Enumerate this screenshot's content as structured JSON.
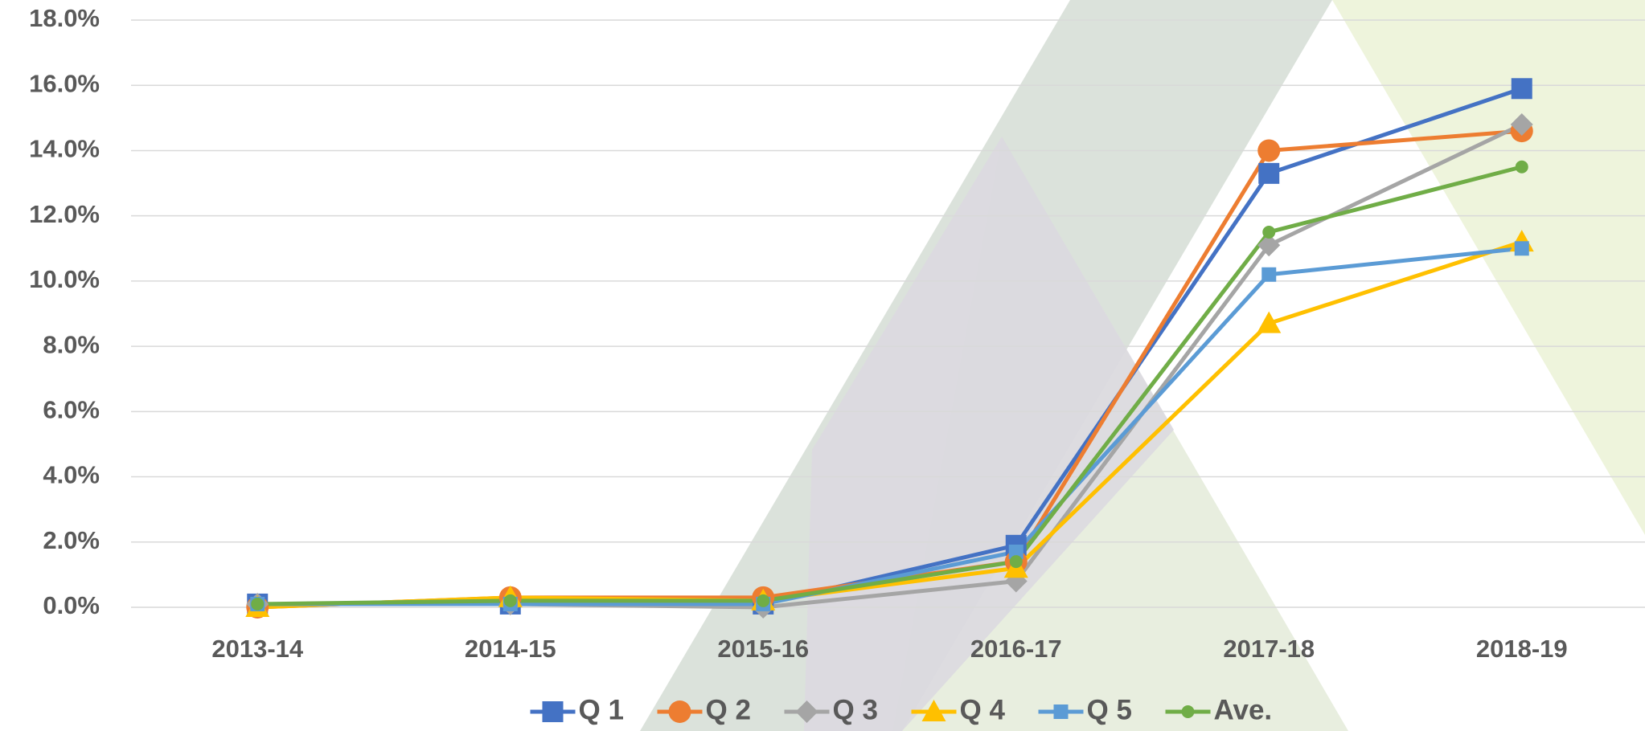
{
  "chart_data": {
    "type": "line",
    "categories": [
      "2013-14",
      "2014-15",
      "2015-16",
      "2016-17",
      "2017-18",
      "2018-19"
    ],
    "series": [
      {
        "name": "Q 1",
        "color": "#4472c4",
        "marker": "square",
        "values": [
          0.1,
          0.1,
          0.1,
          1.9,
          13.3,
          15.9
        ]
      },
      {
        "name": "Q 2",
        "color": "#ed7d31",
        "marker": "circle",
        "values": [
          0.0,
          0.3,
          0.3,
          1.4,
          14.0,
          14.6
        ]
      },
      {
        "name": "Q 3",
        "color": "#a5a5a5",
        "marker": "diamond",
        "values": [
          0.1,
          0.1,
          0.0,
          0.8,
          11.1,
          14.8
        ]
      },
      {
        "name": "Q 4",
        "color": "#ffc000",
        "marker": "triangle",
        "values": [
          0.0,
          0.3,
          0.2,
          1.2,
          8.7,
          11.2
        ]
      },
      {
        "name": "Q 5",
        "color": "#5b9bd5",
        "marker": "small-square",
        "values": [
          0.1,
          0.1,
          0.1,
          1.7,
          10.2,
          11.0
        ]
      },
      {
        "name": "Ave.",
        "color": "#70ad47",
        "marker": "small-circle",
        "values": [
          0.1,
          0.2,
          0.2,
          1.4,
          11.5,
          13.5
        ]
      }
    ],
    "ylim": [
      0,
      18
    ],
    "yticks": [
      {
        "value": 0,
        "label": "0.0%"
      },
      {
        "value": 2,
        "label": "2.0%"
      },
      {
        "value": 4,
        "label": "4.0%"
      },
      {
        "value": 6,
        "label": "6.0%"
      },
      {
        "value": 8,
        "label": "8.0%"
      },
      {
        "value": 10,
        "label": "10.0%"
      },
      {
        "value": 12,
        "label": "12.0%"
      },
      {
        "value": 14,
        "label": "14.0%"
      },
      {
        "value": 16,
        "label": "16.0%"
      },
      {
        "value": 18,
        "label": "18.0%"
      }
    ],
    "grid": true,
    "legend": "bottom"
  }
}
